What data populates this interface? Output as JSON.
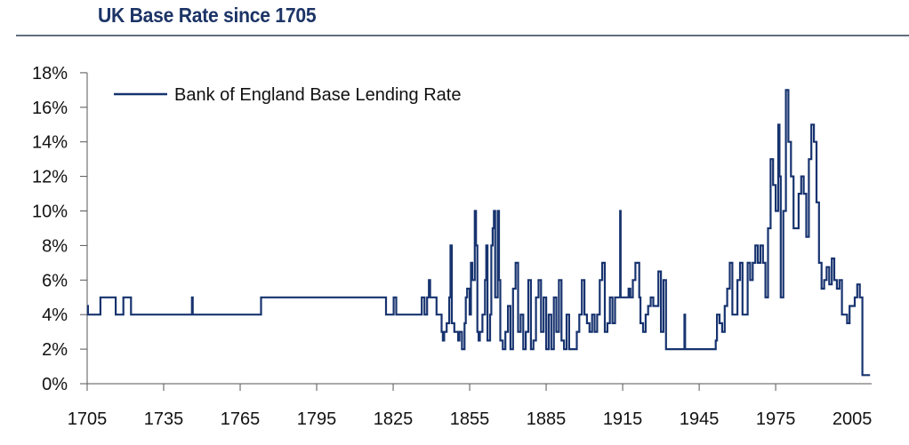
{
  "title": "UK Base Rate since 1705",
  "colors": {
    "series": "#17336f",
    "axis": "#555555",
    "title": "#1c3466",
    "rule": "#5f6f7c"
  },
  "chart_data": {
    "type": "line",
    "title": "UK Base Rate since 1705",
    "xlabel": "",
    "ylabel": "",
    "xlim": [
      1705,
      2009
    ],
    "ylim": [
      0,
      18
    ],
    "grid": false,
    "legend_position": "top-left",
    "x_ticks": [
      "1705",
      "1735",
      "1765",
      "1795",
      "1825",
      "1855",
      "1885",
      "1915",
      "1945",
      "1975",
      "2005"
    ],
    "y_ticks": [
      "0%",
      "2%",
      "4%",
      "6%",
      "8%",
      "10%",
      "12%",
      "14%",
      "16%",
      "18%"
    ],
    "series": [
      {
        "name": "Bank of England Base Lending Rate",
        "step": true,
        "points": [
          [
            1705,
            4.5
          ],
          [
            1705.3,
            4
          ],
          [
            1710,
            4
          ],
          [
            1710.2,
            5
          ],
          [
            1716,
            5
          ],
          [
            1716.2,
            4
          ],
          [
            1719,
            4
          ],
          [
            1719.2,
            5
          ],
          [
            1722,
            5
          ],
          [
            1722.2,
            4
          ],
          [
            1746,
            4
          ],
          [
            1746.1,
            5
          ],
          [
            1746.4,
            4
          ],
          [
            1773,
            4
          ],
          [
            1773.2,
            5
          ],
          [
            1822,
            5
          ],
          [
            1822.2,
            4
          ],
          [
            1825,
            4
          ],
          [
            1825.2,
            5
          ],
          [
            1826,
            5
          ],
          [
            1826.2,
            4
          ],
          [
            1836,
            4
          ],
          [
            1836.2,
            5
          ],
          [
            1837,
            5
          ],
          [
            1837.3,
            4
          ],
          [
            1838,
            4
          ],
          [
            1838.3,
            5
          ],
          [
            1839,
            6
          ],
          [
            1839.5,
            5
          ],
          [
            1840,
            5
          ],
          [
            1841,
            5
          ],
          [
            1842,
            4
          ],
          [
            1844,
            3
          ],
          [
            1844.5,
            2.5
          ],
          [
            1845,
            3
          ],
          [
            1846,
            3.5
          ],
          [
            1847,
            5
          ],
          [
            1847.5,
            8
          ],
          [
            1848,
            3.5
          ],
          [
            1849,
            3
          ],
          [
            1850,
            3
          ],
          [
            1850.5,
            2.5
          ],
          [
            1851,
            3
          ],
          [
            1852,
            2
          ],
          [
            1853,
            3.5
          ],
          [
            1853.5,
            5
          ],
          [
            1854,
            5.5
          ],
          [
            1855,
            4
          ],
          [
            1855.5,
            7
          ],
          [
            1856,
            6
          ],
          [
            1857,
            10
          ],
          [
            1857.5,
            8
          ],
          [
            1858,
            3
          ],
          [
            1858.5,
            2.5
          ],
          [
            1859,
            3
          ],
          [
            1860,
            4
          ],
          [
            1861,
            6
          ],
          [
            1861.5,
            8
          ],
          [
            1862,
            2.5
          ],
          [
            1863,
            4
          ],
          [
            1863.5,
            8
          ],
          [
            1864,
            9
          ],
          [
            1864.5,
            10
          ],
          [
            1865,
            5
          ],
          [
            1866,
            10
          ],
          [
            1866.5,
            6
          ],
          [
            1867,
            2.5
          ],
          [
            1868,
            2
          ],
          [
            1869,
            3
          ],
          [
            1870,
            4.5
          ],
          [
            1871,
            2
          ],
          [
            1872,
            5.5
          ],
          [
            1873,
            7
          ],
          [
            1874,
            3
          ],
          [
            1875,
            4
          ],
          [
            1876,
            2
          ],
          [
            1877,
            3
          ],
          [
            1878,
            6
          ],
          [
            1879,
            2
          ],
          [
            1880,
            2.5
          ],
          [
            1881,
            5
          ],
          [
            1882,
            6
          ],
          [
            1883,
            3
          ],
          [
            1884,
            5
          ],
          [
            1885,
            2
          ],
          [
            1886,
            4
          ],
          [
            1887,
            2
          ],
          [
            1888,
            5
          ],
          [
            1889,
            3
          ],
          [
            1890,
            6
          ],
          [
            1891,
            2.5
          ],
          [
            1892,
            2
          ],
          [
            1893,
            4
          ],
          [
            1894,
            2
          ],
          [
            1895,
            2
          ],
          [
            1896,
            2
          ],
          [
            1897,
            3
          ],
          [
            1898,
            4
          ],
          [
            1899,
            6
          ],
          [
            1900,
            4
          ],
          [
            1901,
            3.5
          ],
          [
            1902,
            3
          ],
          [
            1903,
            4
          ],
          [
            1904,
            3
          ],
          [
            1905,
            4
          ],
          [
            1906,
            6
          ],
          [
            1907,
            7
          ],
          [
            1908,
            3
          ],
          [
            1909,
            3.5
          ],
          [
            1910,
            5
          ],
          [
            1911,
            3.5
          ],
          [
            1912,
            5
          ],
          [
            1913,
            5
          ],
          [
            1914,
            10
          ],
          [
            1914.2,
            5
          ],
          [
            1917,
            5
          ],
          [
            1917.3,
            5.5
          ],
          [
            1918,
            5
          ],
          [
            1919,
            6
          ],
          [
            1920,
            7
          ],
          [
            1921,
            7
          ],
          [
            1921.5,
            5
          ],
          [
            1922,
            3.5
          ],
          [
            1923,
            3
          ],
          [
            1924,
            4
          ],
          [
            1925,
            4.5
          ],
          [
            1926,
            5
          ],
          [
            1927,
            4.5
          ],
          [
            1928,
            4.5
          ],
          [
            1929,
            6.5
          ],
          [
            1930,
            3
          ],
          [
            1931,
            6
          ],
          [
            1932,
            2
          ],
          [
            1939,
            2
          ],
          [
            1939.2,
            4
          ],
          [
            1939.5,
            2
          ],
          [
            1951,
            2
          ],
          [
            1951.5,
            2.5
          ],
          [
            1952,
            4
          ],
          [
            1953,
            3.5
          ],
          [
            1954,
            3
          ],
          [
            1955,
            4.5
          ],
          [
            1956,
            5.5
          ],
          [
            1957,
            7
          ],
          [
            1958,
            4
          ],
          [
            1959,
            4
          ],
          [
            1960,
            6
          ],
          [
            1961,
            7
          ],
          [
            1962,
            4
          ],
          [
            1963,
            4
          ],
          [
            1964,
            7
          ],
          [
            1965,
            6
          ],
          [
            1966,
            7
          ],
          [
            1967,
            8
          ],
          [
            1968,
            7
          ],
          [
            1969,
            8
          ],
          [
            1970,
            7
          ],
          [
            1971,
            5
          ],
          [
            1972,
            9
          ],
          [
            1973,
            13
          ],
          [
            1974,
            11.5
          ],
          [
            1975,
            10
          ],
          [
            1976,
            15
          ],
          [
            1976.5,
            12
          ],
          [
            1977,
            5
          ],
          [
            1978,
            10
          ],
          [
            1979,
            17
          ],
          [
            1980,
            14
          ],
          [
            1981,
            12
          ],
          [
            1982,
            9
          ],
          [
            1983,
            9
          ],
          [
            1984,
            11
          ],
          [
            1985,
            12
          ],
          [
            1986,
            11
          ],
          [
            1987,
            8.5
          ],
          [
            1988,
            13
          ],
          [
            1989,
            15
          ],
          [
            1990,
            14
          ],
          [
            1991,
            10.5
          ],
          [
            1992,
            7
          ],
          [
            1993,
            5.5
          ],
          [
            1994,
            6
          ],
          [
            1995,
            6.75
          ],
          [
            1996,
            5.75
          ],
          [
            1997,
            7.25
          ],
          [
            1998,
            6
          ],
          [
            1999,
            5.5
          ],
          [
            2000,
            6
          ],
          [
            2001,
            4
          ],
          [
            2002,
            4
          ],
          [
            2003,
            3.5
          ],
          [
            2004,
            4.5
          ],
          [
            2005,
            4.5
          ],
          [
            2006,
            5
          ],
          [
            2007,
            5.75
          ],
          [
            2008,
            5
          ],
          [
            2009,
            0.5
          ],
          [
            2012,
            0.5
          ]
        ]
      }
    ]
  }
}
